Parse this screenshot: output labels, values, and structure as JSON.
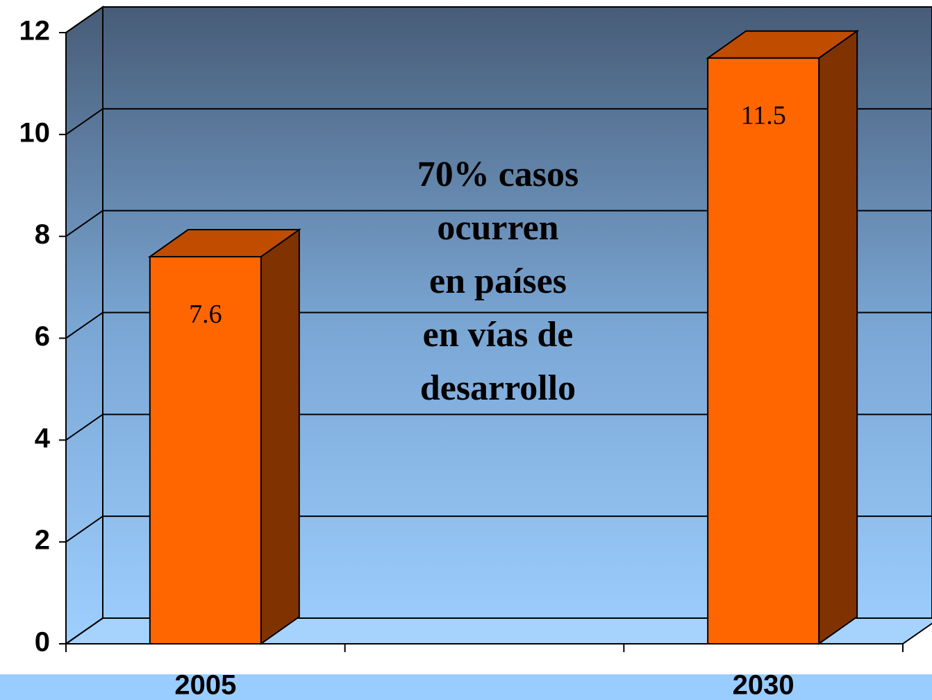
{
  "chart_data": {
    "type": "bar3d",
    "categories": [
      "2005",
      null,
      "2030"
    ],
    "values": [
      7.6,
      null,
      11.5
    ],
    "color": "#ff6600",
    "ylim": [
      0,
      12
    ],
    "yticks": [
      0,
      2,
      4,
      6,
      8,
      10,
      12
    ],
    "grid": true,
    "annotation": [
      "70% casos",
      "ocurren",
      "en países",
      "en vías de",
      "desarrollo"
    ]
  }
}
